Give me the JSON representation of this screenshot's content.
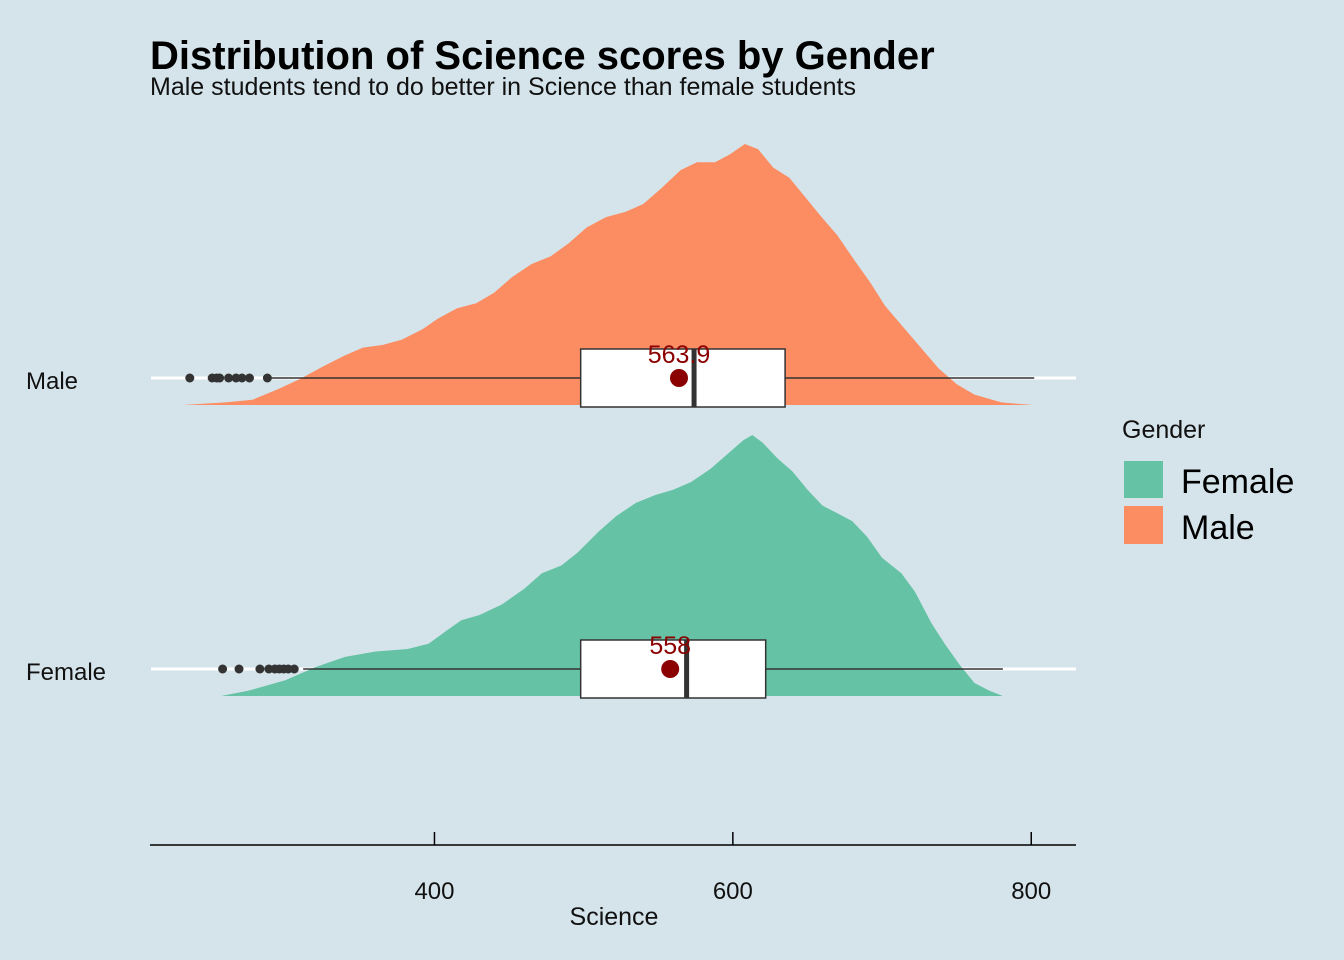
{
  "chart_data": {
    "type": "density-boxplot",
    "title": "Distribution of Science scores by Gender",
    "subtitle": "Male students tend to do better in Science than female students",
    "xlabel": "Science",
    "ylabel": "",
    "xlim": [
      210,
      830
    ],
    "x_ticks": [
      400,
      600,
      800
    ],
    "grid": "horizontal major lines only",
    "legend": {
      "title": "Gender",
      "position": "right",
      "entries": [
        {
          "label": "Female",
          "color": "#66C2A5"
        },
        {
          "label": "Male",
          "color": "#FC8D62"
        }
      ]
    },
    "colors": {
      "background": "#D5E4EB",
      "grid": "#FFFFFF",
      "mean_point": "#8B0000",
      "box_fill": "#FFFFFF",
      "box_stroke": "#333333",
      "outlier": "#333333"
    },
    "series": [
      {
        "name": "Female",
        "color": "#66C2A5",
        "mean": 558,
        "mean_label": "558",
        "box": {
          "whisker_low": 312,
          "q1": 498,
          "median": 569,
          "q3": 622,
          "whisker_high": 781
        },
        "outliers": [
          258,
          269,
          283,
          289,
          293,
          296,
          299,
          302,
          306
        ],
        "density": [
          [
            257,
            0.0
          ],
          [
            275,
            0.02
          ],
          [
            300,
            0.06
          ],
          [
            320,
            0.11
          ],
          [
            340,
            0.15
          ],
          [
            360,
            0.17
          ],
          [
            382,
            0.18
          ],
          [
            396,
            0.2
          ],
          [
            408,
            0.25
          ],
          [
            418,
            0.29
          ],
          [
            430,
            0.31
          ],
          [
            445,
            0.35
          ],
          [
            460,
            0.41
          ],
          [
            472,
            0.47
          ],
          [
            485,
            0.5
          ],
          [
            496,
            0.55
          ],
          [
            510,
            0.63
          ],
          [
            522,
            0.69
          ],
          [
            535,
            0.74
          ],
          [
            548,
            0.77
          ],
          [
            560,
            0.79
          ],
          [
            572,
            0.82
          ],
          [
            585,
            0.87
          ],
          [
            597,
            0.93
          ],
          [
            607,
            0.98
          ],
          [
            613,
            1.0
          ],
          [
            620,
            0.97
          ],
          [
            630,
            0.91
          ],
          [
            640,
            0.86
          ],
          [
            650,
            0.79
          ],
          [
            660,
            0.73
          ],
          [
            670,
            0.7
          ],
          [
            680,
            0.67
          ],
          [
            690,
            0.61
          ],
          [
            700,
            0.53
          ],
          [
            713,
            0.47
          ],
          [
            722,
            0.4
          ],
          [
            733,
            0.28
          ],
          [
            742,
            0.2
          ],
          [
            752,
            0.12
          ],
          [
            762,
            0.05
          ],
          [
            772,
            0.02
          ],
          [
            781,
            0.0
          ]
        ]
      },
      {
        "name": "Male",
        "color": "#FC8D62",
        "mean": 563.9,
        "mean_label": "563.9",
        "box": {
          "whisker_low": 290,
          "q1": 498,
          "median": 574,
          "q3": 635,
          "whisker_high": 802
        },
        "outliers": [
          236,
          251,
          254,
          256,
          262,
          267,
          271,
          276,
          288
        ],
        "density": [
          [
            231,
            0.0
          ],
          [
            260,
            0.01
          ],
          [
            278,
            0.02
          ],
          [
            295,
            0.06
          ],
          [
            310,
            0.1
          ],
          [
            326,
            0.15
          ],
          [
            340,
            0.19
          ],
          [
            352,
            0.22
          ],
          [
            365,
            0.23
          ],
          [
            378,
            0.25
          ],
          [
            392,
            0.29
          ],
          [
            402,
            0.33
          ],
          [
            415,
            0.37
          ],
          [
            428,
            0.39
          ],
          [
            440,
            0.43
          ],
          [
            452,
            0.49
          ],
          [
            465,
            0.54
          ],
          [
            478,
            0.57
          ],
          [
            490,
            0.62
          ],
          [
            502,
            0.68
          ],
          [
            515,
            0.72
          ],
          [
            528,
            0.74
          ],
          [
            540,
            0.77
          ],
          [
            552,
            0.83
          ],
          [
            565,
            0.9
          ],
          [
            576,
            0.93
          ],
          [
            588,
            0.93
          ],
          [
            598,
            0.96
          ],
          [
            608,
            1.0
          ],
          [
            617,
            0.98
          ],
          [
            627,
            0.91
          ],
          [
            638,
            0.87
          ],
          [
            648,
            0.8
          ],
          [
            658,
            0.73
          ],
          [
            670,
            0.65
          ],
          [
            682,
            0.55
          ],
          [
            692,
            0.47
          ],
          [
            702,
            0.38
          ],
          [
            714,
            0.3
          ],
          [
            726,
            0.22
          ],
          [
            738,
            0.14
          ],
          [
            750,
            0.08
          ],
          [
            762,
            0.04
          ],
          [
            780,
            0.01
          ],
          [
            801,
            0.0
          ]
        ]
      }
    ]
  }
}
